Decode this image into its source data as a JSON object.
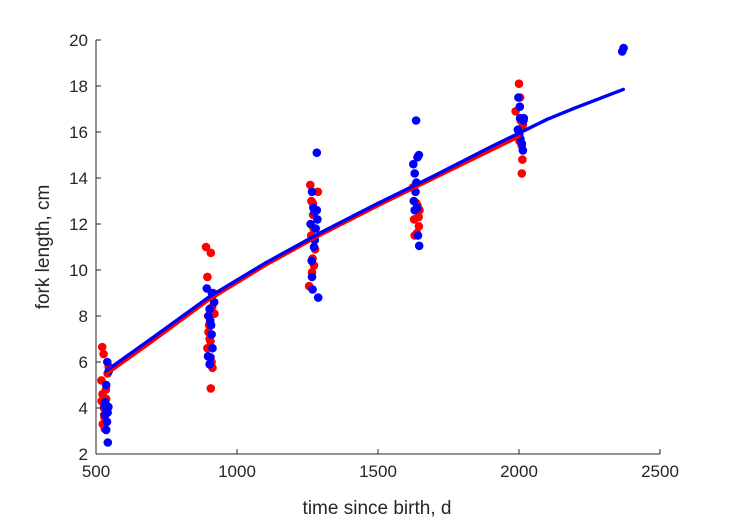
{
  "chart_data": {
    "type": "scatter",
    "title": "",
    "xlabel": "time since birth, d",
    "ylabel": "fork length, cm",
    "xlim": [
      500,
      2500
    ],
    "ylim": [
      2,
      20
    ],
    "xticks": [
      500,
      1000,
      1500,
      2000,
      2500
    ],
    "yticks": [
      2,
      4,
      6,
      8,
      10,
      12,
      14,
      16,
      18,
      20
    ],
    "grid": false,
    "legend": "none",
    "colors": {
      "red": "#ff0000",
      "blue": "#0000ff"
    },
    "series": [
      {
        "color": "#ff0000",
        "kind": "points",
        "points": [
          [
            522,
            6.65
          ],
          [
            527,
            6.35
          ],
          [
            519,
            5.2
          ],
          [
            523,
            4.6
          ],
          [
            528,
            4.0
          ],
          [
            524,
            3.3
          ],
          [
            530,
            3.6
          ],
          [
            533,
            3.9
          ],
          [
            536,
            4.4
          ],
          [
            531,
            3.1
          ],
          [
            541,
            5.5
          ],
          [
            545,
            5.8
          ],
          [
            535,
            4.8
          ],
          [
            520,
            4.3
          ],
          [
            529,
            3.7
          ],
          [
            890,
            11.0
          ],
          [
            907,
            10.75
          ],
          [
            895,
            9.7
          ],
          [
            898,
            8.0
          ],
          [
            901,
            7.6
          ],
          [
            903,
            7.0
          ],
          [
            906,
            6.9
          ],
          [
            910,
            6.0
          ],
          [
            913,
            5.75
          ],
          [
            907,
            4.85
          ],
          [
            916,
            9.0
          ],
          [
            920,
            8.1
          ],
          [
            899,
            7.3
          ],
          [
            912,
            8.4
          ],
          [
            895,
            6.6
          ],
          [
            1260,
            13.7
          ],
          [
            1287,
            13.4
          ],
          [
            1264,
            13.0
          ],
          [
            1256,
            9.3
          ],
          [
            1273,
            10.2
          ],
          [
            1268,
            10.5
          ],
          [
            1266,
            9.9
          ],
          [
            1272,
            11.8
          ],
          [
            1270,
            12.4
          ],
          [
            1263,
            11.5
          ],
          [
            1277,
            10.9
          ],
          [
            1269,
            12.9
          ],
          [
            1625,
            13.6
          ],
          [
            1633,
            12.6
          ],
          [
            1640,
            12.8
          ],
          [
            1644,
            12.3
          ],
          [
            1630,
            11.5
          ],
          [
            1645,
            11.9
          ],
          [
            1636,
            12.9
          ],
          [
            1647,
            12.6
          ],
          [
            1628,
            12.2
          ],
          [
            1638,
            11.6
          ],
          [
            2000,
            18.1
          ],
          [
            1988,
            16.9
          ],
          [
            2006,
            16.5
          ],
          [
            2004,
            17.5
          ],
          [
            2002,
            15.6
          ],
          [
            2010,
            15.4
          ],
          [
            2012,
            14.8
          ],
          [
            2010,
            14.2
          ],
          [
            1998,
            15.8
          ],
          [
            2014,
            16.3
          ]
        ]
      },
      {
        "color": "#0000ff",
        "kind": "points",
        "points": [
          [
            540,
            6.0
          ],
          [
            536,
            5.0
          ],
          [
            533,
            4.25
          ],
          [
            537,
            4.0
          ],
          [
            541,
            3.8
          ],
          [
            539,
            3.4
          ],
          [
            536,
            3.05
          ],
          [
            542,
            2.5
          ],
          [
            530,
            4.1
          ],
          [
            544,
            4.05
          ],
          [
            532,
            3.7
          ],
          [
            538,
            3.95
          ],
          [
            545,
            5.6
          ],
          [
            893,
            9.2
          ],
          [
            903,
            8.3
          ],
          [
            899,
            8.0
          ],
          [
            905,
            7.8
          ],
          [
            908,
            7.6
          ],
          [
            910,
            7.2
          ],
          [
            913,
            6.6
          ],
          [
            906,
            6.2
          ],
          [
            903,
            5.9
          ],
          [
            913,
            8.9
          ],
          [
            919,
            8.6
          ],
          [
            911,
            9.0
          ],
          [
            897,
            6.25
          ],
          [
            1283,
            15.1
          ],
          [
            1275,
            12.5
          ],
          [
            1266,
            13.4
          ],
          [
            1271,
            12.7
          ],
          [
            1283,
            12.6
          ],
          [
            1285,
            12.2
          ],
          [
            1279,
            11.8
          ],
          [
            1276,
            11.3
          ],
          [
            1273,
            11.0
          ],
          [
            1265,
            10.4
          ],
          [
            1266,
            9.7
          ],
          [
            1268,
            9.15
          ],
          [
            1288,
            8.8
          ],
          [
            1261,
            12.0
          ],
          [
            1635,
            16.5
          ],
          [
            1625,
            14.6
          ],
          [
            1640,
            14.9
          ],
          [
            1645,
            15.0
          ],
          [
            1630,
            14.2
          ],
          [
            1636,
            13.8
          ],
          [
            1633,
            13.4
          ],
          [
            1639,
            12.7
          ],
          [
            1630,
            12.6
          ],
          [
            1642,
            11.5
          ],
          [
            1646,
            11.05
          ],
          [
            1627,
            13.0
          ],
          [
            1998,
            17.5
          ],
          [
            2003,
            17.1
          ],
          [
            2004,
            16.6
          ],
          [
            2017,
            16.6
          ],
          [
            2016,
            16.5
          ],
          [
            1996,
            16.1
          ],
          [
            2001,
            15.9
          ],
          [
            2005,
            15.7
          ],
          [
            2010,
            15.5
          ],
          [
            2014,
            15.2
          ],
          [
            2366,
            19.5
          ],
          [
            2371,
            19.65
          ]
        ]
      },
      {
        "color": "#ff0000",
        "kind": "line",
        "points": [
          [
            540,
            5.5
          ],
          [
            700,
            6.9
          ],
          [
            900,
            8.7
          ],
          [
            1100,
            10.2
          ],
          [
            1300,
            11.55
          ],
          [
            1500,
            12.8
          ],
          [
            1700,
            14.0
          ],
          [
            1900,
            15.2
          ],
          [
            2000,
            15.8
          ]
        ]
      },
      {
        "color": "#0000ff",
        "kind": "line",
        "points": [
          [
            540,
            5.65
          ],
          [
            700,
            7.05
          ],
          [
            900,
            8.82
          ],
          [
            1100,
            10.3
          ],
          [
            1300,
            11.65
          ],
          [
            1500,
            12.9
          ],
          [
            1700,
            14.1
          ],
          [
            1900,
            15.35
          ],
          [
            2000,
            15.95
          ],
          [
            2100,
            16.55
          ],
          [
            2200,
            17.05
          ],
          [
            2370,
            17.85
          ]
        ]
      }
    ]
  }
}
